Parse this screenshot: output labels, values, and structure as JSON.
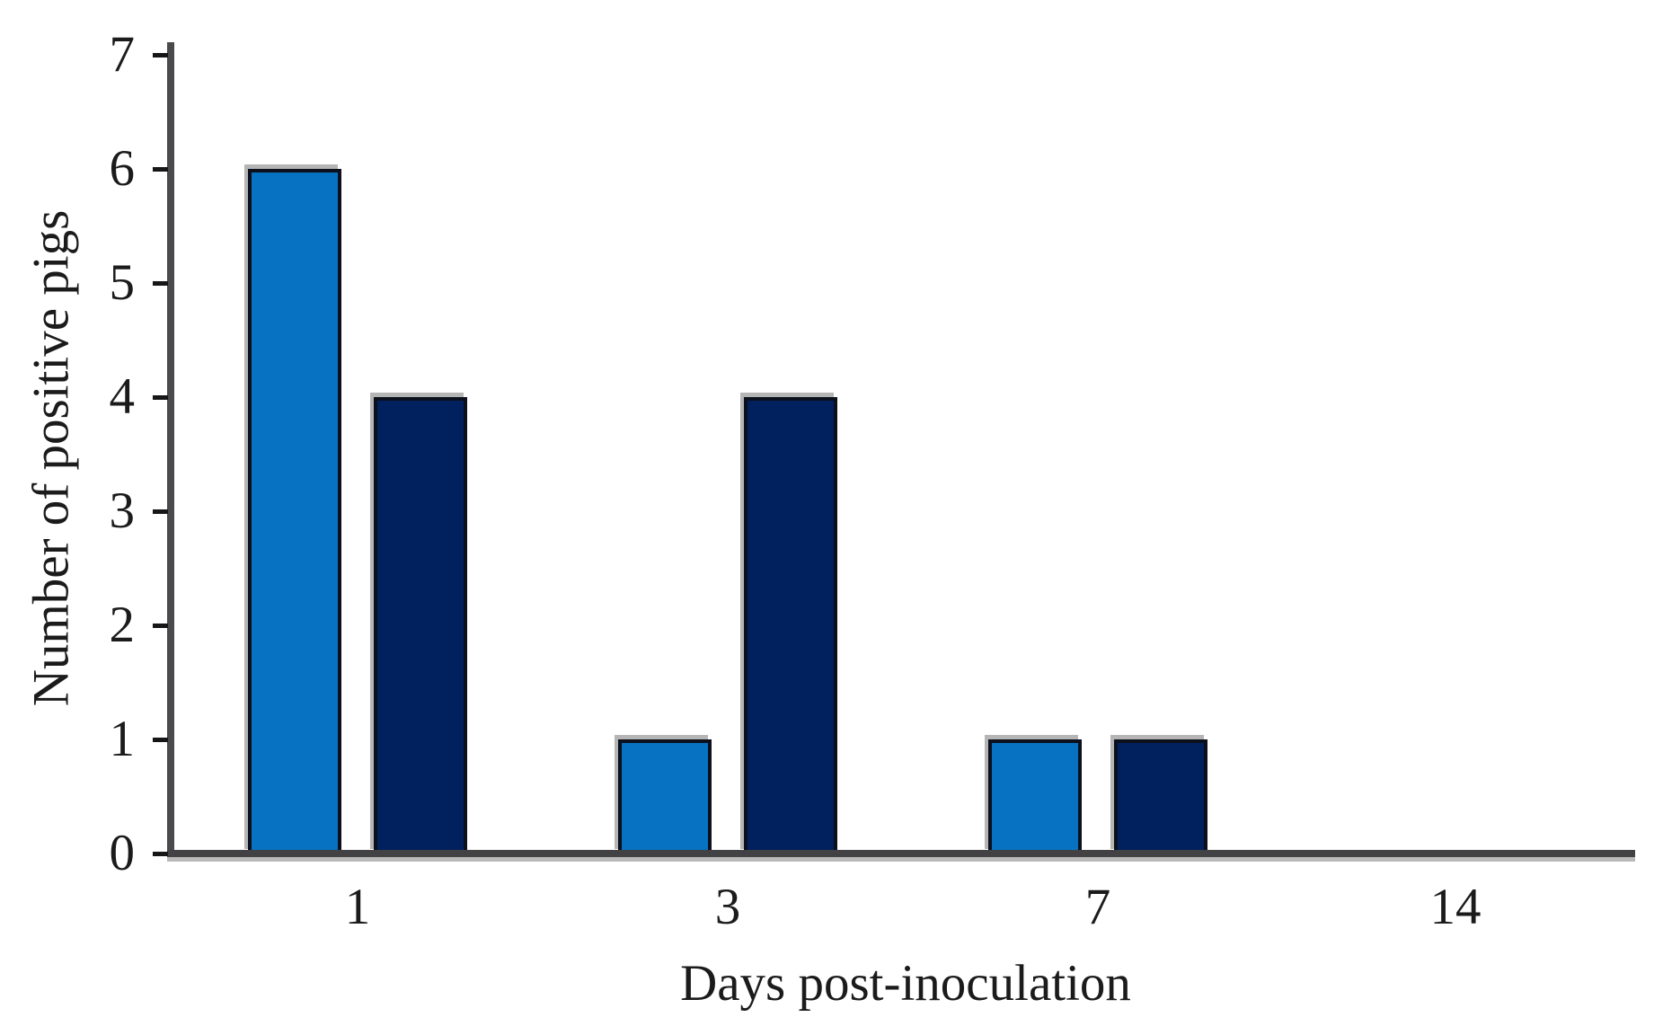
{
  "chart_data": {
    "type": "bar",
    "title": "",
    "xlabel": "Days post-inoculation",
    "ylabel": "Number of positive pigs",
    "categories": [
      "1",
      "3",
      "7",
      "14"
    ],
    "series": [
      {
        "name": "light-blue-series",
        "color": "#0872C2",
        "values": [
          6,
          1,
          1,
          0
        ]
      },
      {
        "name": "dark-navy-series",
        "color": "#01205E",
        "values": [
          4,
          4,
          1,
          0
        ]
      }
    ],
    "ylim": [
      0,
      7
    ],
    "yticks": [
      0,
      1,
      2,
      3,
      4,
      5,
      6,
      7
    ],
    "grid": false,
    "legend_position": "none"
  },
  "colors": {
    "axis": "#4a4a4c",
    "x_axis": "#424244",
    "tick": "#161616",
    "text": "#1b1b1b",
    "bar_border": "#0b101c",
    "shadow": "#b5b5b5",
    "background": "#ffffff"
  }
}
